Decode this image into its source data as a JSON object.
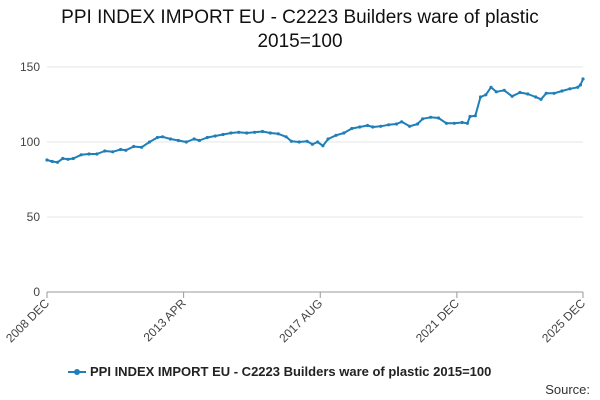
{
  "chart_data": {
    "type": "line",
    "title_line1": "PPI INDEX IMPORT EU - C2223 Builders ware of plastic",
    "title_line2": "2015=100",
    "ylim": [
      0,
      150
    ],
    "yticks": [
      0,
      50,
      100,
      150
    ],
    "xlim": [
      "2008-12",
      "2025-12"
    ],
    "xticks": [
      {
        "date": "2008-12",
        "label": "2008 DEC"
      },
      {
        "date": "2013-04",
        "label": "2013 APR"
      },
      {
        "date": "2017-08",
        "label": "2017 AUG"
      },
      {
        "date": "2021-12",
        "label": "2021 DEC"
      },
      {
        "date": "2025-12",
        "label": "2025 DEC"
      }
    ],
    "grid": true,
    "legend": "bottom",
    "series": [
      {
        "name": "PPI INDEX IMPORT EU - C2223 Builders ware of plastic 2015=100",
        "color": "#1f7fb8",
        "points": [
          [
            "2008-12",
            88
          ],
          [
            "2009-02",
            87
          ],
          [
            "2009-04",
            86.5
          ],
          [
            "2009-06",
            89
          ],
          [
            "2009-08",
            88.5
          ],
          [
            "2009-10",
            89
          ],
          [
            "2010-01",
            91.5
          ],
          [
            "2010-04",
            92
          ],
          [
            "2010-07",
            92
          ],
          [
            "2010-10",
            94
          ],
          [
            "2011-01",
            93.5
          ],
          [
            "2011-04",
            95
          ],
          [
            "2011-06",
            94.5
          ],
          [
            "2011-09",
            97
          ],
          [
            "2011-12",
            96.5
          ],
          [
            "2012-03",
            100
          ],
          [
            "2012-06",
            103
          ],
          [
            "2012-08",
            103.5
          ],
          [
            "2012-11",
            102
          ],
          [
            "2013-02",
            101
          ],
          [
            "2013-05",
            100
          ],
          [
            "2013-08",
            102
          ],
          [
            "2013-10",
            101
          ],
          [
            "2014-01",
            103
          ],
          [
            "2014-04",
            104
          ],
          [
            "2014-07",
            105
          ],
          [
            "2014-10",
            106
          ],
          [
            "2015-01",
            106.5
          ],
          [
            "2015-04",
            106
          ],
          [
            "2015-07",
            106.5
          ],
          [
            "2015-10",
            107
          ],
          [
            "2016-01",
            106
          ],
          [
            "2016-04",
            105.5
          ],
          [
            "2016-07",
            103.5
          ],
          [
            "2016-09",
            100.5
          ],
          [
            "2016-12",
            100
          ],
          [
            "2017-03",
            100.5
          ],
          [
            "2017-05",
            98.5
          ],
          [
            "2017-07",
            100
          ],
          [
            "2017-09",
            97.5
          ],
          [
            "2017-11",
            102
          ],
          [
            "2018-02",
            104.5
          ],
          [
            "2018-05",
            106
          ],
          [
            "2018-08",
            109
          ],
          [
            "2018-11",
            110
          ],
          [
            "2019-02",
            111
          ],
          [
            "2019-04",
            110
          ],
          [
            "2019-07",
            110.5
          ],
          [
            "2019-10",
            111.5
          ],
          [
            "2020-01",
            112
          ],
          [
            "2020-03",
            113.5
          ],
          [
            "2020-06",
            110.5
          ],
          [
            "2020-09",
            112
          ],
          [
            "2020-11",
            115.5
          ],
          [
            "2021-02",
            116.5
          ],
          [
            "2021-05",
            116
          ],
          [
            "2021-08",
            112.5
          ],
          [
            "2021-11",
            112.5
          ],
          [
            "2022-02",
            113
          ],
          [
            "2022-04",
            112.5
          ],
          [
            "2022-05",
            117
          ],
          [
            "2022-07",
            117.5
          ],
          [
            "2022-09",
            130
          ],
          [
            "2022-11",
            131.5
          ],
          [
            "2023-01",
            136.5
          ],
          [
            "2023-03",
            133.5
          ],
          [
            "2023-06",
            134.5
          ],
          [
            "2023-09",
            130.5
          ],
          [
            "2023-12",
            133
          ],
          [
            "2024-03",
            132
          ],
          [
            "2024-06",
            130
          ],
          [
            "2024-08",
            128.5
          ],
          [
            "2024-10",
            132.5
          ],
          [
            "2025-01",
            132.5
          ],
          [
            "2025-04",
            134
          ],
          [
            "2025-07",
            135.5
          ],
          [
            "2025-10",
            136.5
          ],
          [
            "2025-11",
            138
          ],
          [
            "2025-12",
            142
          ]
        ]
      }
    ]
  },
  "source_label": "Source:"
}
